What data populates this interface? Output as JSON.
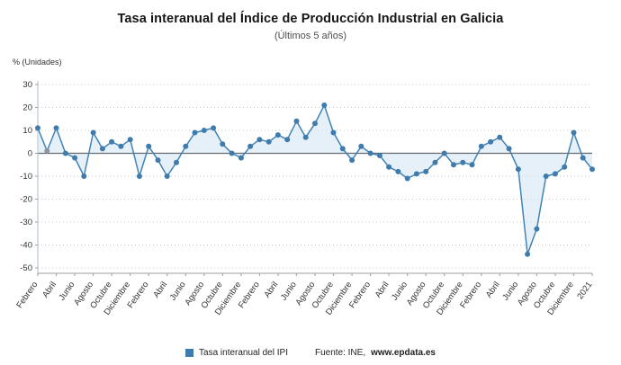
{
  "header": {
    "title": "Tasa interanual del Índice de Producción Industrial en Galicia",
    "subtitle": "(Últimos 5 años)"
  },
  "axis": {
    "unit_label": "% (Unidades)"
  },
  "legend": {
    "series_label": "Tasa interanual del IPI",
    "source_prefix": "Fuente: INE,",
    "source_site": "www.epdata.es"
  },
  "colors": {
    "line": "#4383b4",
    "marker": "#3f7cad",
    "gray_marker": "#8f959b",
    "area_fill": "#cfe4f3",
    "grid": "#c9c9c9",
    "zero_line": "#3c3c3c",
    "axis_line": "#9e9e9e",
    "y_axis_line": "#a9bac8",
    "tick_text": "#333333"
  },
  "chart_data": {
    "type": "line",
    "title": "Tasa interanual del Índice de Producción Industrial en Galicia",
    "subtitle": "(Últimos 5 años)",
    "ylabel": "% (Unidades)",
    "ylim": [
      -50,
      30
    ],
    "y_ticks": [
      30,
      20,
      10,
      0,
      -10,
      -20,
      -30,
      -40,
      -50
    ],
    "grid": "dotted-horizontal",
    "legend_position": "bottom",
    "legend_entries": [
      "Tasa interanual del IPI"
    ],
    "source": "Fuente: INE, www.epdata.es",
    "x_tick_every": 2,
    "x_tick_labels": [
      "Febrero",
      "Abril",
      "Junio",
      "Agosto",
      "Octubre",
      "Diciembre",
      "Febrero",
      "Abril",
      "Junio",
      "Agosto",
      "Octubre",
      "Diciembre",
      "Febrero",
      "Abril",
      "Junio",
      "Agosto",
      "Octubre",
      "Diciembre",
      "Febrero",
      "Abril",
      "Junio",
      "Agosto",
      "Octubre",
      "Diciembre",
      "Febrero",
      "Abril",
      "Junio",
      "Agosto",
      "Octubre",
      "Diciembre",
      "2021"
    ],
    "values": [
      11,
      1,
      11,
      0,
      -2,
      -10,
      9,
      2,
      5,
      3,
      6,
      -10,
      3,
      -3,
      -10,
      -4,
      3,
      9,
      10,
      11,
      4,
      0,
      -2,
      3,
      6,
      5,
      8,
      6,
      14,
      7,
      13,
      21,
      9,
      2,
      -3,
      3,
      0,
      -1,
      -6,
      -8,
      -11,
      -9,
      -8,
      -4,
      0,
      -5,
      -4,
      -5,
      3,
      5,
      7,
      2,
      -7,
      -44,
      -33,
      -10,
      -9,
      -6,
      9,
      -2,
      -7
    ],
    "gray_point_index": 1
  }
}
